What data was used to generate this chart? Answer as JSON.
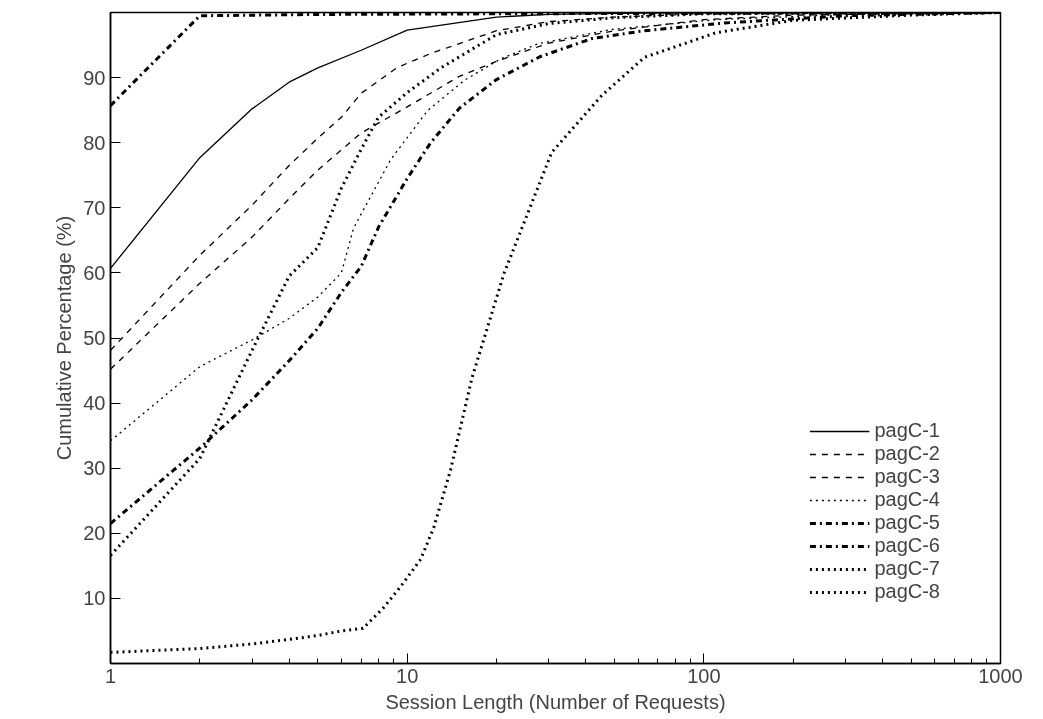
{
  "chart_data": {
    "type": "line",
    "xlabel": "Session Length (Number of Requests)",
    "ylabel": "Cumulative Percentage (%)",
    "log": "x",
    "xlim": [
      1,
      1000
    ],
    "xticks": [
      1,
      10,
      100,
      1000
    ],
    "ylim": [
      0,
      100
    ],
    "yticks": [
      10,
      20,
      30,
      40,
      50,
      60,
      70,
      80,
      90
    ],
    "grid": false,
    "legend": "bottom right",
    "marker": "none",
    "series": [
      {
        "name": "pagC-1",
        "color": "#000000",
        "line_style": "solid",
        "x": [
          1,
          2,
          3,
          4,
          5,
          7,
          10,
          20,
          30,
          60,
          1000
        ],
        "values": [
          60.7,
          77.7,
          85.2,
          89.3,
          91.5,
          94.2,
          97.3,
          99.3,
          99.7,
          99.9,
          100
        ]
      },
      {
        "name": "pagC-2",
        "color": "#000000",
        "line_style": "dashed",
        "x": [
          1,
          2,
          3,
          4,
          5,
          6,
          7,
          9.3,
          12,
          20,
          30,
          50,
          100,
          1000
        ],
        "values": [
          48.1,
          62.7,
          70.4,
          76.5,
          80.7,
          83.9,
          87.6,
          91.6,
          93.7,
          97.2,
          98.6,
          99.3,
          99.8,
          100
        ]
      },
      {
        "name": "pagC-3",
        "color": "#000000",
        "line_style": "dashed",
        "x": [
          1,
          2,
          3,
          4,
          5,
          7,
          10,
          15,
          20,
          30,
          50,
          100,
          200,
          1000
        ],
        "values": [
          45.2,
          58.4,
          65.5,
          71.4,
          75.8,
          81.5,
          85.5,
          90.2,
          92.5,
          95.3,
          97.2,
          98.9,
          99.6,
          100
        ]
      },
      {
        "name": "pagC-4",
        "color": "#000000",
        "line_style": "dotted",
        "x": [
          1,
          2,
          3,
          4,
          5,
          6,
          6.6,
          8.8,
          11.7,
          15.6,
          20.7,
          27.6,
          49,
          110,
          300,
          1000
        ],
        "values": [
          34.2,
          45.6,
          49.7,
          53,
          56.3,
          60,
          66.9,
          77.4,
          84.9,
          89.6,
          92.9,
          95.2,
          97.4,
          98.9,
          99.7,
          100
        ]
      },
      {
        "name": "pagC-5",
        "color": "#000000",
        "line_style": "dashdot",
        "x": [
          1,
          2,
          3,
          4,
          5,
          6,
          7,
          8,
          10,
          12,
          15,
          20,
          28,
          42,
          63,
          118,
          300,
          1000
        ],
        "values": [
          21.5,
          33.1,
          40.5,
          46.5,
          51.5,
          57,
          61,
          67,
          74.5,
          80,
          85.3,
          89.7,
          93.2,
          96,
          97.2,
          98.4,
          99.5,
          100
        ]
      },
      {
        "name": "pagC-6",
        "color": "#000000",
        "line_style": "dashdot",
        "x": [
          1,
          2,
          5,
          20,
          1000
        ],
        "values": [
          85.7,
          99.5,
          99.7,
          99.8,
          100
        ]
      },
      {
        "name": "pagC-7",
        "color": "#000000",
        "line_style": "dotted",
        "x": [
          1,
          2,
          3,
          4,
          5,
          6,
          7,
          8,
          10,
          13,
          20,
          30,
          50,
          100,
          1000
        ],
        "values": [
          16.6,
          31.5,
          48.1,
          59.5,
          63.9,
          73,
          79,
          83.9,
          87.7,
          91.5,
          96.6,
          98.3,
          99.2,
          99.8,
          100
        ]
      },
      {
        "name": "pagC-8",
        "color": "#000000",
        "line_style": "dotted",
        "x": [
          1,
          2,
          3,
          4,
          5,
          6,
          7.1,
          8.3,
          9.5,
          11.1,
          12.3,
          14,
          16.5,
          21.2,
          30.7,
          45.4,
          63,
          110,
          200,
          500,
          1000
        ],
        "values": [
          1.7,
          2.3,
          3,
          3.7,
          4.3,
          5,
          5.4,
          8.5,
          11.8,
          16,
          20.9,
          29.7,
          43.7,
          59.9,
          78.5,
          87.3,
          93.1,
          96.9,
          98.8,
          99.6,
          100
        ]
      }
    ]
  }
}
